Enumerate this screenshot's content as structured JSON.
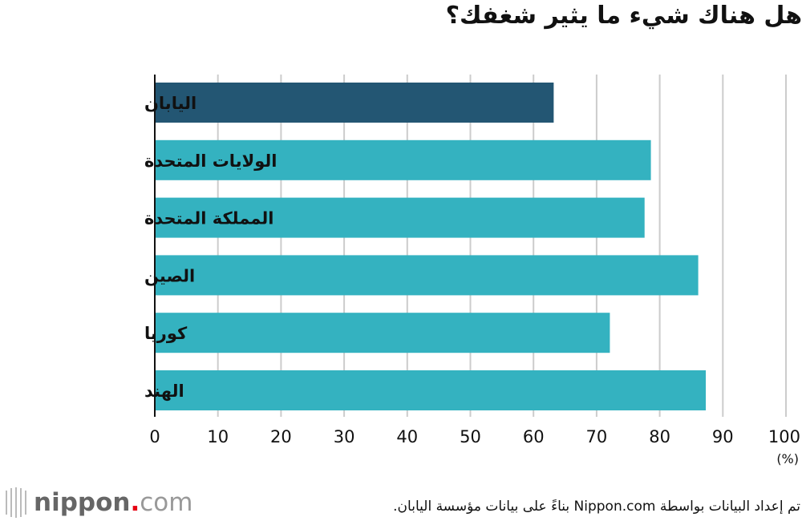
{
  "title": "هل هناك شيء ما يثير شغفك؟",
  "source": "تم إعداد البيانات بواسطة Nippon.com بناءً على بيانات مؤسسة اليابان.",
  "logo": {
    "prefix": "nippon",
    "dot": ".",
    "suffix": "com"
  },
  "colors": {
    "highlight": "#235673",
    "bar": "#34b2c0",
    "grid": "#cccccc",
    "axis": "#111111"
  },
  "chart_data": {
    "type": "bar",
    "orientation": "horizontal",
    "categories": [
      "اليابان",
      "الولايات المتحدة",
      "المملكة المتحدة",
      "الصين",
      "كوريا",
      "الهند"
    ],
    "values": [
      63.2,
      78.6,
      77.6,
      86.1,
      72.1,
      87.3
    ],
    "highlight_index": 0,
    "xlim": [
      0,
      100
    ],
    "xticks": [
      "0",
      "10",
      "20",
      "30",
      "40",
      "50",
      "60",
      "70",
      "80",
      "90",
      "100"
    ],
    "unit": "(%)",
    "grid": true,
    "legend": "none"
  }
}
